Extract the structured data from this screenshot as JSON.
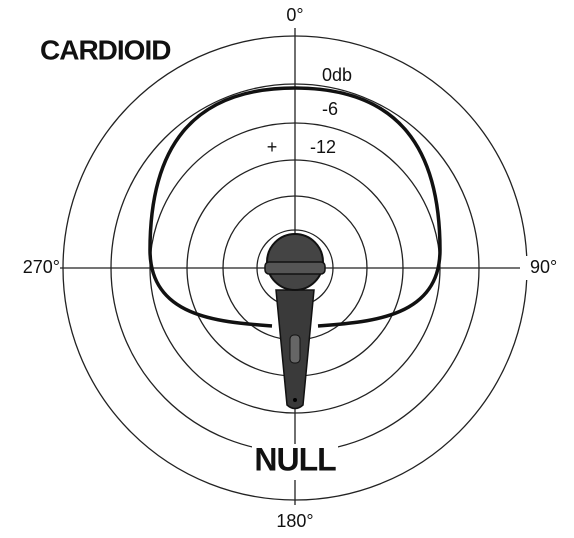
{
  "title": "CARDIOID",
  "angles": {
    "top": "0°",
    "right": "90°",
    "bottom": "180°",
    "left": "270°"
  },
  "levels": [
    "0db",
    "-6",
    "-12"
  ],
  "plus": "+",
  "null_label": "NULL"
}
